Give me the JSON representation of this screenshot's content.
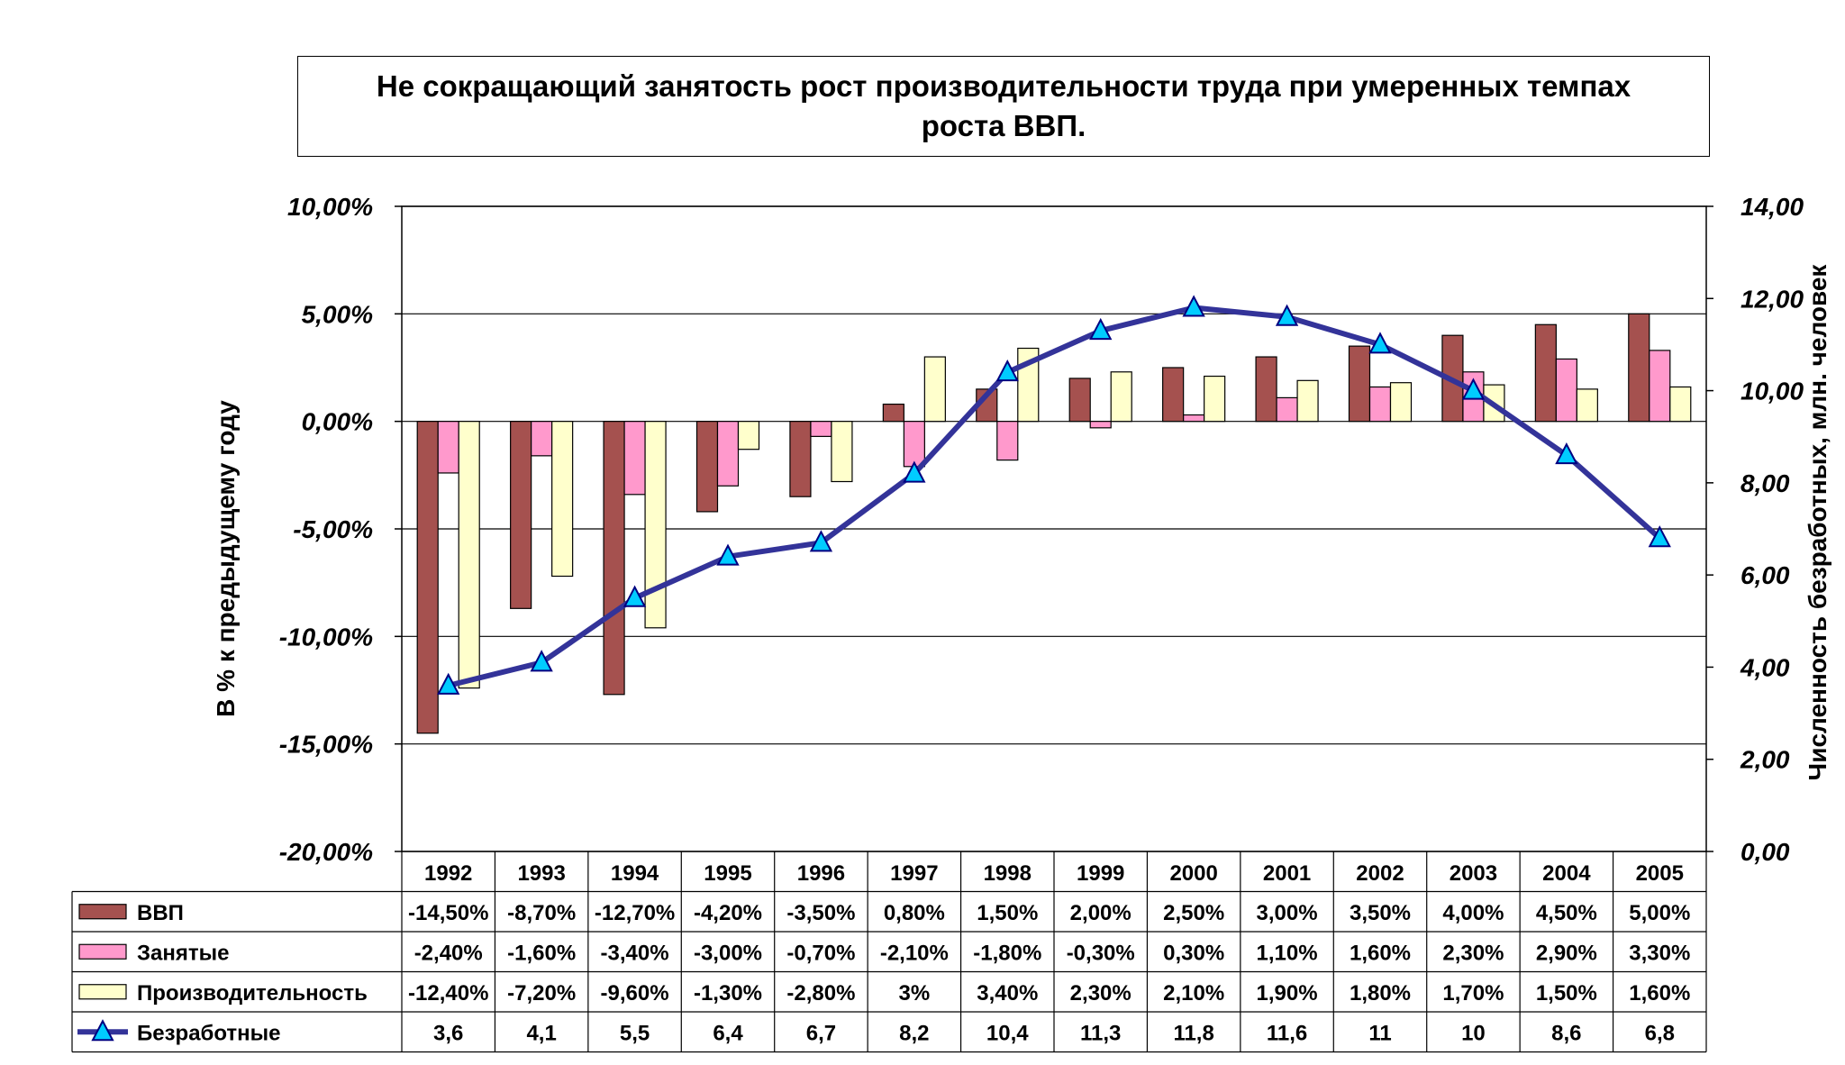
{
  "chart_data": {
    "type": "bar",
    "title": [
      "Не сокращающий занятость рост производительности труда при умеренных темпах",
      "роста ВВП."
    ],
    "ylabel": "В % к предыдущему году",
    "y2label": "Численность безработных, млн. человек",
    "ylim": [
      -20,
      10
    ],
    "y2lim": [
      0,
      14
    ],
    "yticks": [
      "10,00%",
      "5,00%",
      "0,00%",
      "-5,00%",
      "-10,00%",
      "-15,00%",
      "-20,00%"
    ],
    "y2ticks": [
      "14,00",
      "12,00",
      "10,00",
      "8,00",
      "6,00",
      "4,00",
      "2,00",
      "0,00"
    ],
    "categories": [
      "1992",
      "1993",
      "1994",
      "1995",
      "1996",
      "1997",
      "1998",
      "1999",
      "2000",
      "2001",
      "2002",
      "2003",
      "2004",
      "2005"
    ],
    "grid": true,
    "series": [
      {
        "name": "ВВП",
        "type": "bar",
        "axis": "left",
        "color": "#A5514F",
        "values": [
          -14.5,
          -8.7,
          -12.7,
          -4.2,
          -3.5,
          0.8,
          1.5,
          2.0,
          2.5,
          3.0,
          3.5,
          4.0,
          4.5,
          5.0
        ],
        "labels": [
          "-14,50%",
          "-8,70%",
          "-12,70%",
          "-4,20%",
          "-3,50%",
          "0,80%",
          "1,50%",
          "2,00%",
          "2,50%",
          "3,00%",
          "3,50%",
          "4,00%",
          "4,50%",
          "5,00%"
        ]
      },
      {
        "name": "Занятые",
        "type": "bar",
        "axis": "left",
        "color": "#FF99CC",
        "values": [
          -2.4,
          -1.6,
          -3.4,
          -3.0,
          -0.7,
          -2.1,
          -1.8,
          -0.3,
          0.3,
          1.1,
          1.6,
          2.3,
          2.9,
          3.3
        ],
        "labels": [
          "-2,40%",
          "-1,60%",
          "-3,40%",
          "-3,00%",
          "-0,70%",
          "-2,10%",
          "-1,80%",
          "-0,30%",
          "0,30%",
          "1,10%",
          "1,60%",
          "2,30%",
          "2,90%",
          "3,30%"
        ]
      },
      {
        "name": "Производительность",
        "type": "bar",
        "axis": "left",
        "color": "#FFFFCC",
        "values": [
          -12.4,
          -7.2,
          -9.6,
          -1.3,
          -2.8,
          3.0,
          3.4,
          2.3,
          2.1,
          1.9,
          1.8,
          1.7,
          1.5,
          1.6
        ],
        "labels": [
          "-12,40%",
          "-7,20%",
          "-9,60%",
          "-1,30%",
          "-2,80%",
          "3%",
          "3,40%",
          "2,30%",
          "2,10%",
          "1,90%",
          "1,80%",
          "1,70%",
          "1,50%",
          "1,60%"
        ]
      },
      {
        "name": "Безработные",
        "type": "line",
        "axis": "right",
        "color": "#333399",
        "marker_color": "#00CCFF",
        "values": [
          3.6,
          4.1,
          5.5,
          6.4,
          6.7,
          8.2,
          10.4,
          11.3,
          11.8,
          11.6,
          11.0,
          10.0,
          8.6,
          6.8
        ],
        "labels": [
          "3,6",
          "4,1",
          "5,5",
          "6,4",
          "6,7",
          "8,2",
          "10,4",
          "11,3",
          "11,8",
          "11,6",
          "11",
          "10",
          "8,6",
          "6,8"
        ]
      }
    ]
  }
}
